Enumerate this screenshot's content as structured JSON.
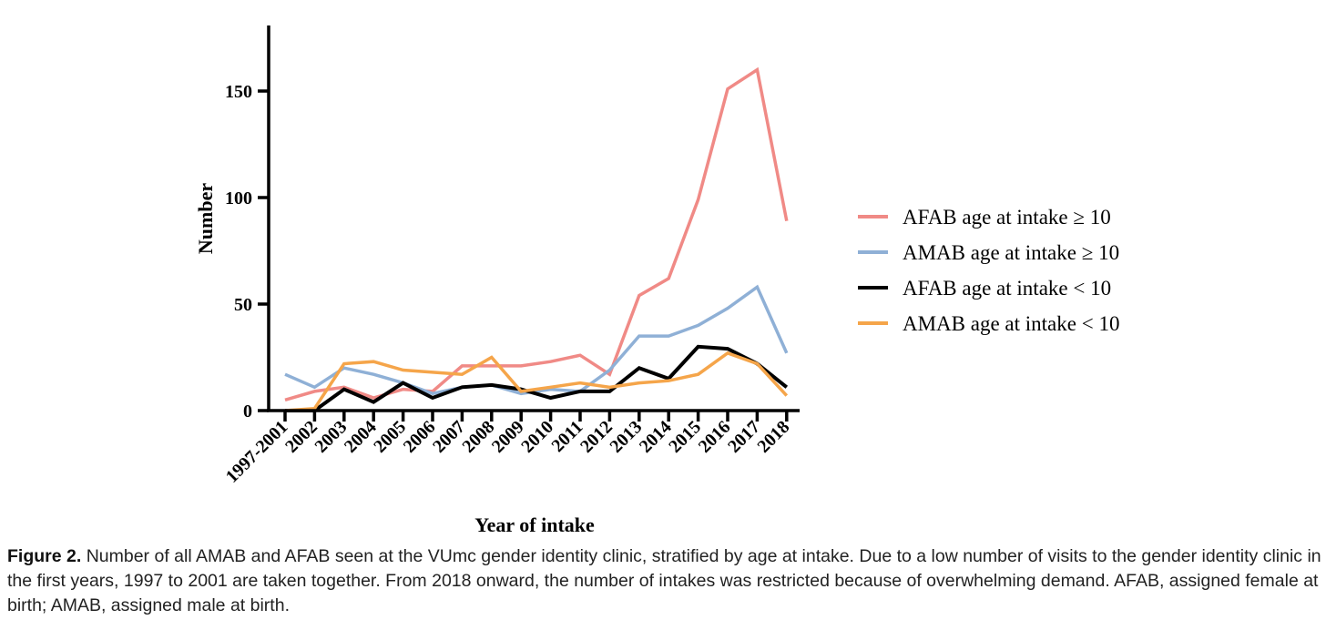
{
  "chart_data": {
    "type": "line",
    "title": "",
    "xlabel": "Year of intake",
    "ylabel": "Number",
    "ylim": [
      0,
      180
    ],
    "yticks": [
      0,
      50,
      100,
      150
    ],
    "categories": [
      "1997-2001",
      "2002",
      "2003",
      "2004",
      "2005",
      "2006",
      "2007",
      "2008",
      "2009",
      "2010",
      "2011",
      "2012",
      "2013",
      "2014",
      "2015",
      "2016",
      "2017",
      "2018"
    ],
    "legend_position": "right",
    "series": [
      {
        "name": "AFAB age at intake ≥ 10",
        "color": "#f08a86",
        "values": [
          5,
          9,
          11,
          6,
          10,
          9,
          21,
          21,
          21,
          23,
          26,
          17,
          54,
          62,
          99,
          151,
          160,
          89
        ]
      },
      {
        "name": "AMAB age at intake ≥ 10",
        "color": "#8fb0d6",
        "values": [
          17,
          11,
          20,
          17,
          13,
          8,
          11,
          12,
          8,
          10,
          9,
          19,
          35,
          35,
          40,
          48,
          58,
          27
        ]
      },
      {
        "name": "AFAB age at intake < 10",
        "color": "#000000",
        "values": [
          0,
          0,
          10,
          4,
          13,
          6,
          11,
          12,
          10,
          6,
          9,
          9,
          20,
          15,
          30,
          29,
          22,
          11
        ]
      },
      {
        "name": "AMAB age at intake < 10",
        "color": "#f5a54a",
        "values": [
          0,
          1,
          22,
          23,
          19,
          18,
          17,
          25,
          9,
          11,
          13,
          11,
          13,
          14,
          17,
          27,
          22,
          7
        ]
      }
    ]
  },
  "caption": {
    "label": "Figure 2.",
    "text": " Number of all AMAB and AFAB seen at the VUmc gender identity clinic, stratified by age at intake. Due to a low number of visits to the gender identity clinic in the first years, 1997 to 2001 are taken together. From 2018 onward, the number of intakes was restricted because of overwhelming demand. AFAB, assigned female at birth; AMAB, assigned male at birth."
  }
}
